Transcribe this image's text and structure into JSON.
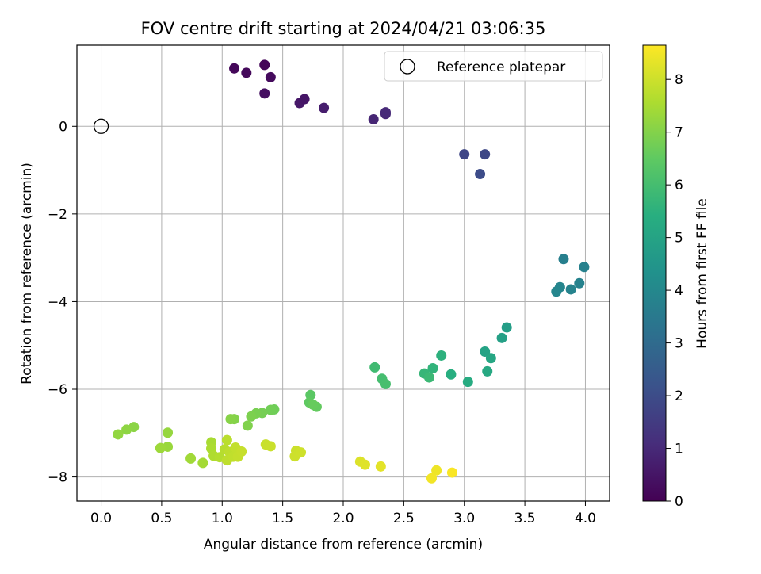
{
  "chart_data": {
    "type": "scatter",
    "title": "FOV centre drift starting at 2024/04/21 03:06:35",
    "xlabel": "Angular distance from reference (arcmin)",
    "ylabel": "Rotation from reference (arcmin)",
    "xlim": [
      -0.2,
      4.2
    ],
    "ylim": [
      -8.55,
      1.85
    ],
    "xticks": [
      0.0,
      0.5,
      1.0,
      1.5,
      2.0,
      2.5,
      3.0,
      3.5,
      4.0
    ],
    "xtick_labels": [
      "0.0",
      "0.5",
      "1.0",
      "1.5",
      "2.0",
      "2.5",
      "3.0",
      "3.5",
      "4.0"
    ],
    "yticks": [
      0,
      -2,
      -4,
      -6,
      -8
    ],
    "ytick_labels": [
      "0",
      "−2",
      "−4",
      "−6",
      "−8"
    ],
    "grid": true,
    "legend": {
      "placement": "top-right",
      "entries": [
        "Reference platepar"
      ]
    },
    "reference_point": {
      "x": 0.0,
      "y": 0.0
    },
    "colorbar": {
      "label": "Hours from first FF file",
      "colormap": "viridis",
      "range": [
        0,
        8.65
      ],
      "ticks": [
        0,
        1,
        2,
        3,
        4,
        5,
        6,
        7,
        8
      ],
      "tick_labels": [
        "0",
        "1",
        "2",
        "3",
        "4",
        "5",
        "6",
        "7",
        "8"
      ]
    },
    "points": [
      {
        "x": 1.1,
        "y": 1.32,
        "c": 0.15
      },
      {
        "x": 1.2,
        "y": 1.22,
        "c": 0.2
      },
      {
        "x": 1.35,
        "y": 1.4,
        "c": 0.1
      },
      {
        "x": 1.4,
        "y": 1.12,
        "c": 0.25
      },
      {
        "x": 1.35,
        "y": 0.75,
        "c": 0.35
      },
      {
        "x": 1.64,
        "y": 0.53,
        "c": 0.55
      },
      {
        "x": 1.68,
        "y": 0.62,
        "c": 0.5
      },
      {
        "x": 1.84,
        "y": 0.42,
        "c": 0.7
      },
      {
        "x": 2.25,
        "y": 0.16,
        "c": 0.9
      },
      {
        "x": 2.35,
        "y": 0.28,
        "c": 0.95
      },
      {
        "x": 2.35,
        "y": 0.32,
        "c": 1.0
      },
      {
        "x": 3.0,
        "y": -0.64,
        "c": 1.8
      },
      {
        "x": 3.17,
        "y": -0.64,
        "c": 1.85
      },
      {
        "x": 3.13,
        "y": -1.09,
        "c": 2.0
      },
      {
        "x": 3.82,
        "y": -3.03,
        "c": 3.7
      },
      {
        "x": 3.99,
        "y": -3.21,
        "c": 3.75
      },
      {
        "x": 3.95,
        "y": -3.58,
        "c": 3.8
      },
      {
        "x": 3.88,
        "y": -3.72,
        "c": 3.85
      },
      {
        "x": 3.79,
        "y": -3.67,
        "c": 3.9
      },
      {
        "x": 3.76,
        "y": -3.77,
        "c": 3.95
      },
      {
        "x": 3.35,
        "y": -4.59,
        "c": 4.8
      },
      {
        "x": 3.31,
        "y": -4.83,
        "c": 4.9
      },
      {
        "x": 3.17,
        "y": -5.14,
        "c": 5.0
      },
      {
        "x": 3.22,
        "y": -5.29,
        "c": 5.1
      },
      {
        "x": 3.19,
        "y": -5.59,
        "c": 5.2
      },
      {
        "x": 3.03,
        "y": -5.83,
        "c": 5.3
      },
      {
        "x": 2.89,
        "y": -5.66,
        "c": 5.4
      },
      {
        "x": 2.81,
        "y": -5.23,
        "c": 5.5
      },
      {
        "x": 2.74,
        "y": -5.52,
        "c": 5.6
      },
      {
        "x": 2.67,
        "y": -5.64,
        "c": 5.7
      },
      {
        "x": 2.71,
        "y": -5.73,
        "c": 5.8
      },
      {
        "x": 2.26,
        "y": -5.5,
        "c": 5.9
      },
      {
        "x": 2.32,
        "y": -5.76,
        "c": 6.0
      },
      {
        "x": 2.35,
        "y": -5.88,
        "c": 6.05
      },
      {
        "x": 1.73,
        "y": -6.13,
        "c": 6.4
      },
      {
        "x": 1.72,
        "y": -6.3,
        "c": 6.5
      },
      {
        "x": 1.78,
        "y": -6.4,
        "c": 6.55
      },
      {
        "x": 1.75,
        "y": -6.35,
        "c": 6.6
      },
      {
        "x": 1.43,
        "y": -6.46,
        "c": 6.7
      },
      {
        "x": 1.4,
        "y": -6.47,
        "c": 6.75
      },
      {
        "x": 1.33,
        "y": -6.54,
        "c": 6.8
      },
      {
        "x": 1.28,
        "y": -6.55,
        "c": 6.85
      },
      {
        "x": 1.24,
        "y": -6.62,
        "c": 6.9
      },
      {
        "x": 1.21,
        "y": -6.83,
        "c": 6.95
      },
      {
        "x": 1.1,
        "y": -6.68,
        "c": 7.0
      },
      {
        "x": 1.07,
        "y": -6.68,
        "c": 7.05
      },
      {
        "x": 0.27,
        "y": -6.86,
        "c": 7.1
      },
      {
        "x": 0.21,
        "y": -6.92,
        "c": 7.15
      },
      {
        "x": 0.14,
        "y": -7.03,
        "c": 7.2
      },
      {
        "x": 0.55,
        "y": -6.99,
        "c": 7.25
      },
      {
        "x": 0.55,
        "y": -7.31,
        "c": 7.3
      },
      {
        "x": 0.49,
        "y": -7.34,
        "c": 7.35
      },
      {
        "x": 0.74,
        "y": -7.58,
        "c": 7.4
      },
      {
        "x": 0.84,
        "y": -7.68,
        "c": 7.45
      },
      {
        "x": 0.91,
        "y": -7.21,
        "c": 7.5
      },
      {
        "x": 0.91,
        "y": -7.35,
        "c": 7.55
      },
      {
        "x": 0.93,
        "y": -7.52,
        "c": 7.6
      },
      {
        "x": 0.98,
        "y": -7.55,
        "c": 7.65
      },
      {
        "x": 1.02,
        "y": -7.37,
        "c": 7.7
      },
      {
        "x": 1.04,
        "y": -7.16,
        "c": 7.75
      },
      {
        "x": 1.06,
        "y": -7.43,
        "c": 7.78
      },
      {
        "x": 1.04,
        "y": -7.62,
        "c": 7.8
      },
      {
        "x": 1.09,
        "y": -7.54,
        "c": 7.83
      },
      {
        "x": 1.11,
        "y": -7.33,
        "c": 7.85
      },
      {
        "x": 1.13,
        "y": -7.54,
        "c": 7.88
      },
      {
        "x": 1.16,
        "y": -7.42,
        "c": 7.9
      },
      {
        "x": 1.36,
        "y": -7.26,
        "c": 7.93
      },
      {
        "x": 1.4,
        "y": -7.3,
        "c": 7.95
      },
      {
        "x": 1.61,
        "y": -7.4,
        "c": 7.98
      },
      {
        "x": 1.6,
        "y": -7.53,
        "c": 8.0
      },
      {
        "x": 1.65,
        "y": -7.44,
        "c": 8.02
      },
      {
        "x": 2.14,
        "y": -7.65,
        "c": 8.2
      },
      {
        "x": 2.18,
        "y": -7.72,
        "c": 8.25
      },
      {
        "x": 2.31,
        "y": -7.76,
        "c": 8.3
      },
      {
        "x": 2.77,
        "y": -7.85,
        "c": 8.45
      },
      {
        "x": 2.73,
        "y": -8.03,
        "c": 8.5
      },
      {
        "x": 2.9,
        "y": -7.9,
        "c": 8.6
      }
    ]
  }
}
